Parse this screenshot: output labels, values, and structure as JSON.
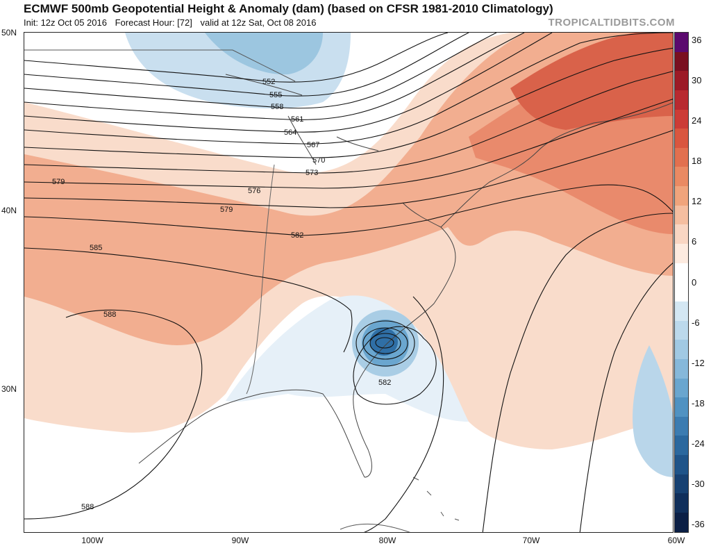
{
  "title": "ECMWF 500mb Geopotential Height & Anomaly (dam) (based on CFSR 1981-2010 Climatology)",
  "init": "Init: 12z Oct 05 2016",
  "forecast_hour": "Forecast Hour: [72]",
  "valid": "valid at 12z Sat, Oct 08 2016",
  "credit": "TROPICALTIDBITS.COM",
  "lat_labels": [
    "50N",
    "40N",
    "30N"
  ],
  "lon_labels": [
    "100W",
    "90W",
    "80W",
    "70W",
    "60W"
  ],
  "contour_labels": [
    "552",
    "555",
    "558",
    "561",
    "564",
    "567",
    "570",
    "573",
    "576",
    "579",
    "579",
    "582",
    "582",
    "585",
    "588",
    "588"
  ],
  "colorbar": {
    "ticks": [
      "36",
      "30",
      "24",
      "18",
      "12",
      "6",
      "0",
      "-6",
      "-12",
      "-18",
      "-24",
      "-30",
      "-36"
    ],
    "colors": [
      "#5b0a6e",
      "#7a1020",
      "#9c1a26",
      "#b82a30",
      "#cc3c36",
      "#d9563f",
      "#e2704f",
      "#ea8a63",
      "#f0a47c",
      "#f5bea0",
      "#f9d6c3",
      "#fdebe0",
      "#ffffff",
      "#ffffff",
      "#d4e7f3",
      "#bcd9ec",
      "#a1c9e3",
      "#86b8da",
      "#6aa6cf",
      "#5092c2",
      "#3c7cb1",
      "#2b689e",
      "#1f5489",
      "#174172",
      "#102f5b",
      "#0b1f45"
    ]
  },
  "colors": {
    "warm_light": "#f8d8c6",
    "warm_mid": "#f0a788",
    "warm_strong": "#e47a5d",
    "warm_deep": "#d4553f",
    "cool_light": "#c9dfef",
    "cool_mid": "#8ebedc",
    "cool_deep": "#3f7fb8"
  }
}
